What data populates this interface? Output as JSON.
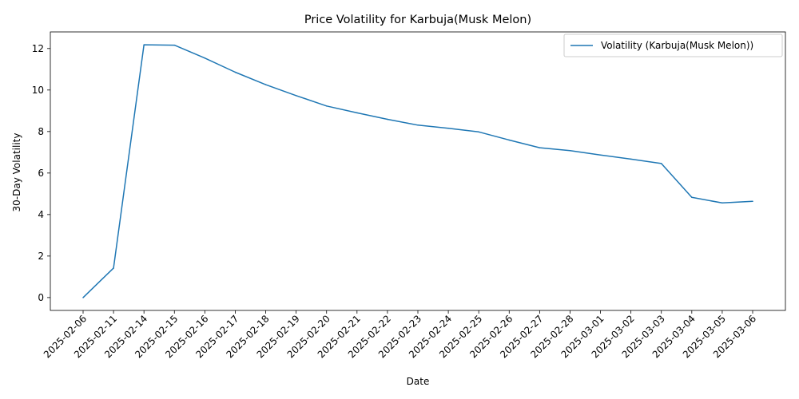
{
  "chart_data": {
    "type": "line",
    "title": "Price Volatility for Karbuja(Musk Melon)",
    "xlabel": "Date",
    "ylabel": "30-Day Volatility",
    "ylim": [
      -0.62,
      12.8
    ],
    "yticks": [
      0,
      2,
      4,
      6,
      8,
      10,
      12
    ],
    "ytick_labels": [
      "0",
      "2",
      "4",
      "6",
      "8",
      "10",
      "12"
    ],
    "grid": false,
    "legend_position": "top-right",
    "categories": [
      "2025-02-06",
      "2025-02-11",
      "2025-02-14",
      "2025-02-15",
      "2025-02-16",
      "2025-02-17",
      "2025-02-18",
      "2025-02-19",
      "2025-02-20",
      "2025-02-21",
      "2025-02-22",
      "2025-02-23",
      "2025-02-24",
      "2025-02-25",
      "2025-02-26",
      "2025-02-27",
      "2025-02-28",
      "2025-03-01",
      "2025-03-02",
      "2025-03-03",
      "2025-03-04",
      "2025-03-05",
      "2025-03-06"
    ],
    "series": [
      {
        "name": "Volatility (Karbuja(Musk Melon))",
        "color": "#1f77b4",
        "values": [
          0.0,
          1.42,
          12.18,
          12.16,
          11.54,
          10.86,
          10.26,
          9.73,
          9.23,
          8.9,
          8.59,
          8.31,
          8.16,
          7.98,
          7.59,
          7.22,
          7.08,
          6.87,
          6.67,
          6.46,
          4.83,
          4.56,
          4.64
        ]
      }
    ]
  }
}
